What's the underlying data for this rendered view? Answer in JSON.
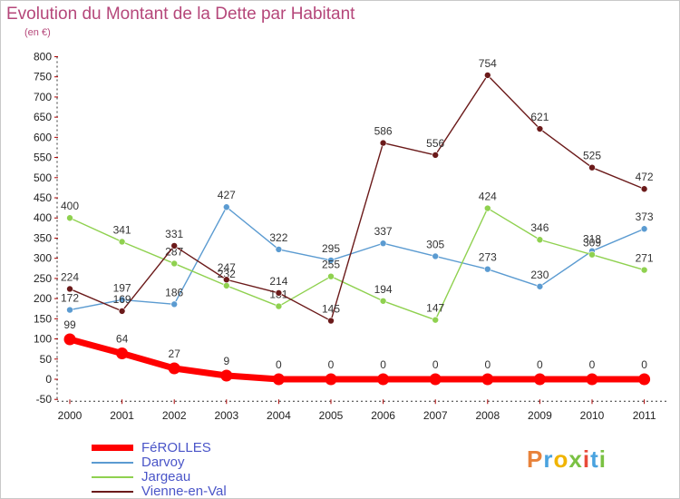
{
  "header": {
    "title": "Evolution du Montant de la Dette par Habitant",
    "subtitle": "(en €)"
  },
  "brand": {
    "logo_text": "Proxiti"
  },
  "chart_data": {
    "type": "line",
    "title": "Evolution du Montant de la Dette par Habitant",
    "ylabel": "(en €)",
    "x": [
      "2000",
      "2001",
      "2002",
      "2003",
      "2004",
      "2005",
      "2006",
      "2007",
      "2008",
      "2009",
      "2010",
      "2011"
    ],
    "ylim": [
      -50,
      800
    ],
    "yticks": [
      -50,
      0,
      50,
      100,
      150,
      200,
      250,
      300,
      350,
      400,
      450,
      500,
      550,
      600,
      650,
      700,
      750,
      800
    ],
    "grid": false,
    "legend_position": "bottom-left",
    "series": [
      {
        "name": "FéROLLES",
        "color": "#ff0000",
        "emphasis": true,
        "values": [
          99,
          64,
          27,
          9,
          0,
          0,
          0,
          0,
          0,
          0,
          0,
          0
        ]
      },
      {
        "name": "Darvoy",
        "color": "#5b9bd1",
        "values": [
          172,
          197,
          186,
          427,
          322,
          295,
          337,
          305,
          273,
          230,
          318,
          373
        ]
      },
      {
        "name": "Jargeau",
        "color": "#8fd14f",
        "values": [
          400,
          341,
          287,
          232,
          181,
          255,
          194,
          147,
          424,
          346,
          309,
          271
        ]
      },
      {
        "name": "Vienne-en-Val",
        "color": "#6b1a1a",
        "values": [
          224,
          169,
          331,
          247,
          214,
          145,
          586,
          556,
          754,
          621,
          525,
          472
        ]
      }
    ]
  }
}
